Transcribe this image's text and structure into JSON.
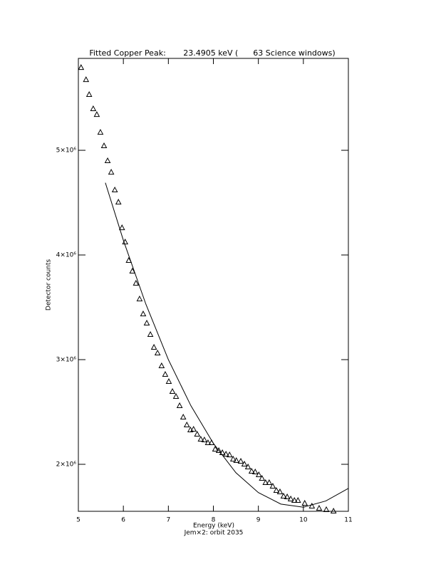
{
  "chart_data": {
    "type": "scatter",
    "title": "Fitted Copper Peak:       23.4905 keV (      63 Science windows)",
    "x_label": "Energy (keV)",
    "subtitle": "Jem×2: orbit 2035",
    "y_label": "Detector counts",
    "xlim": [
      5,
      11
    ],
    "xticks": [
      5,
      6,
      7,
      8,
      9,
      10,
      11
    ],
    "ylim": [
      1551000,
      5878000
    ],
    "yticks": [
      {
        "value": 2000000,
        "label": "2×10⁶"
      },
      {
        "value": 3000000,
        "label": "3×10⁶"
      },
      {
        "value": 4000000,
        "label": "4×10⁶"
      },
      {
        "value": 5000000,
        "label": "5×10⁶"
      }
    ],
    "series": [
      {
        "type": "scatter",
        "marker": "triangle",
        "color": "#000000",
        "x": [
          5.06,
          5.17,
          5.24,
          5.33,
          5.41,
          5.49,
          5.57,
          5.65,
          5.73,
          5.81,
          5.89,
          5.97,
          6.04,
          6.12,
          6.2,
          6.28,
          6.36,
          6.44,
          6.52,
          6.6,
          6.68,
          6.76,
          6.85,
          6.93,
          7.01,
          7.09,
          7.17,
          7.25,
          7.33,
          7.41,
          7.49,
          7.56,
          7.64,
          7.72,
          7.8,
          7.88,
          7.96,
          8.04,
          8.12,
          8.2,
          8.28,
          8.36,
          8.44,
          8.51,
          8.61,
          8.69,
          8.77,
          8.85,
          8.93,
          9.01,
          9.08,
          9.16,
          9.24,
          9.32,
          9.4,
          9.48,
          9.56,
          9.64,
          9.72,
          9.8,
          9.88,
          10.03,
          10.19,
          10.35,
          10.51,
          10.67
        ],
        "values": [
          5789000,
          5673000,
          5531000,
          5395000,
          5340000,
          5170000,
          5041000,
          4898000,
          4789000,
          4619000,
          4503000,
          4258000,
          4122000,
          3946000,
          3844000,
          3728000,
          3578000,
          3435000,
          3347000,
          3238000,
          3116000,
          3061000,
          2939000,
          2857000,
          2789000,
          2694000,
          2646000,
          2558000,
          2449000,
          2374000,
          2327000,
          2333000,
          2286000,
          2238000,
          2231000,
          2204000,
          2204000,
          2143000,
          2129000,
          2109000,
          2095000,
          2088000,
          2048000,
          2034000,
          2027000,
          2000000,
          1973000,
          1932000,
          1925000,
          1898000,
          1864000,
          1823000,
          1823000,
          1789000,
          1748000,
          1735000,
          1694000,
          1687000,
          1667000,
          1653000,
          1653000,
          1626000,
          1599000,
          1578000,
          1565000,
          1551000
        ]
      },
      {
        "type": "line",
        "color": "#000000",
        "x": [
          5.6,
          6,
          6.5,
          7,
          7.5,
          8,
          8.5,
          9,
          9.5,
          10,
          10.5,
          11
        ],
        "values": [
          4690000,
          4140000,
          3530000,
          3000000,
          2560000,
          2200000,
          1920000,
          1730000,
          1620000,
          1590000,
          1650000,
          1770000
        ]
      }
    ]
  }
}
